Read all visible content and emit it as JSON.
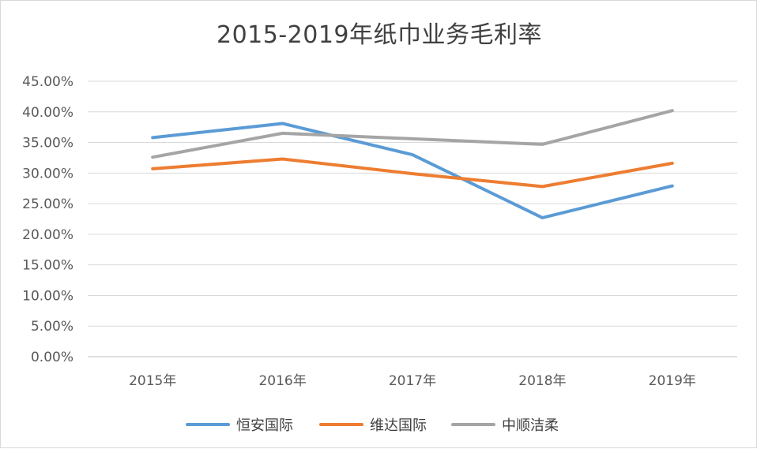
{
  "chart_data": {
    "type": "line",
    "title": "2015-2019年纸巾业务毛利率",
    "categories": [
      "2015年",
      "2016年",
      "2017年",
      "2018年",
      "2019年"
    ],
    "ylim": [
      0,
      45
    ],
    "y_ticks": [
      "0.00%",
      "5.00%",
      "10.00%",
      "15.00%",
      "20.00%",
      "25.00%",
      "30.00%",
      "35.00%",
      "40.00%",
      "45.00%"
    ],
    "grid": true,
    "legend_position": "bottom",
    "series": [
      {
        "name": "恒安国际",
        "color": "#5b9bd5",
        "values": [
          35.8,
          38.1,
          33.0,
          22.7,
          27.9
        ]
      },
      {
        "name": "维达国际",
        "color": "#ed7d31",
        "values": [
          30.7,
          32.3,
          29.9,
          27.8,
          31.6
        ]
      },
      {
        "name": "中顺洁柔",
        "color": "#a5a5a5",
        "values": [
          32.6,
          36.5,
          35.6,
          34.7,
          40.2
        ]
      }
    ]
  }
}
